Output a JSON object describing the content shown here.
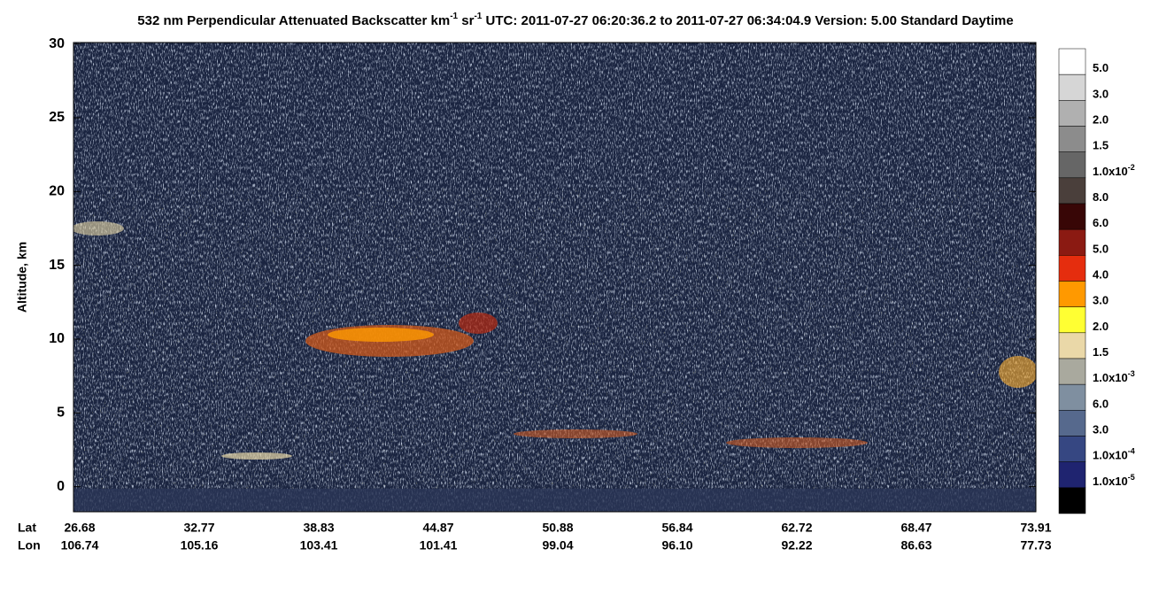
{
  "chart_data": {
    "type": "heatmap",
    "title": [
      "532 nm Perpendicular Attenuated Backscatter km",
      "-1",
      " sr",
      "-1",
      "  UTC: 2011-07-27 06:20:36.2 to 2011-07-27 06:34:04.9  Version: 5.00 Standard Daytime"
    ],
    "ylabel": "Altitude, km",
    "ylim": [
      -1.7,
      30.1
    ],
    "yticks": [
      0,
      5,
      10,
      15,
      20,
      25,
      30
    ],
    "x_rows": [
      {
        "name": "Lat",
        "labels": [
          "26.68",
          "32.77",
          "38.83",
          "44.87",
          "50.88",
          "56.84",
          "62.72",
          "68.47",
          "73.91"
        ]
      },
      {
        "name": "Lon",
        "labels": [
          "106.74",
          "105.16",
          "103.41",
          "101.41",
          "99.04",
          "96.10",
          "92.22",
          "86.63",
          "77.73"
        ]
      }
    ],
    "colorbar": {
      "colors": [
        "#ffffff",
        "#d6d6d6",
        "#b0b0b0",
        "#8c8c8c",
        "#666666",
        "#4a3f3b",
        "#380606",
        "#8b1a12",
        "#e52d0e",
        "#ff9900",
        "#ffff33",
        "#ead8a8",
        "#a9a99e",
        "#7f8fa0",
        "#56698d",
        "#364782",
        "#1f2470",
        "#000000"
      ],
      "labels": [
        {
          "base": "5.0"
        },
        {
          "base": "3.0"
        },
        {
          "base": "2.0"
        },
        {
          "base": "1.5"
        },
        {
          "base": "1.0x10",
          "sup": "-2"
        },
        {
          "base": "8.0"
        },
        {
          "base": "6.0"
        },
        {
          "base": "5.0"
        },
        {
          "base": "4.0"
        },
        {
          "base": "3.0"
        },
        {
          "base": "2.0"
        },
        {
          "base": "1.5"
        },
        {
          "base": "1.0x10",
          "sup": "-3"
        },
        {
          "base": "6.0"
        },
        {
          "base": "3.0"
        },
        {
          "base": "1.0x10",
          "sup": "-4"
        },
        {
          "base": "1.0x10",
          "sup": "-5"
        }
      ]
    }
  }
}
